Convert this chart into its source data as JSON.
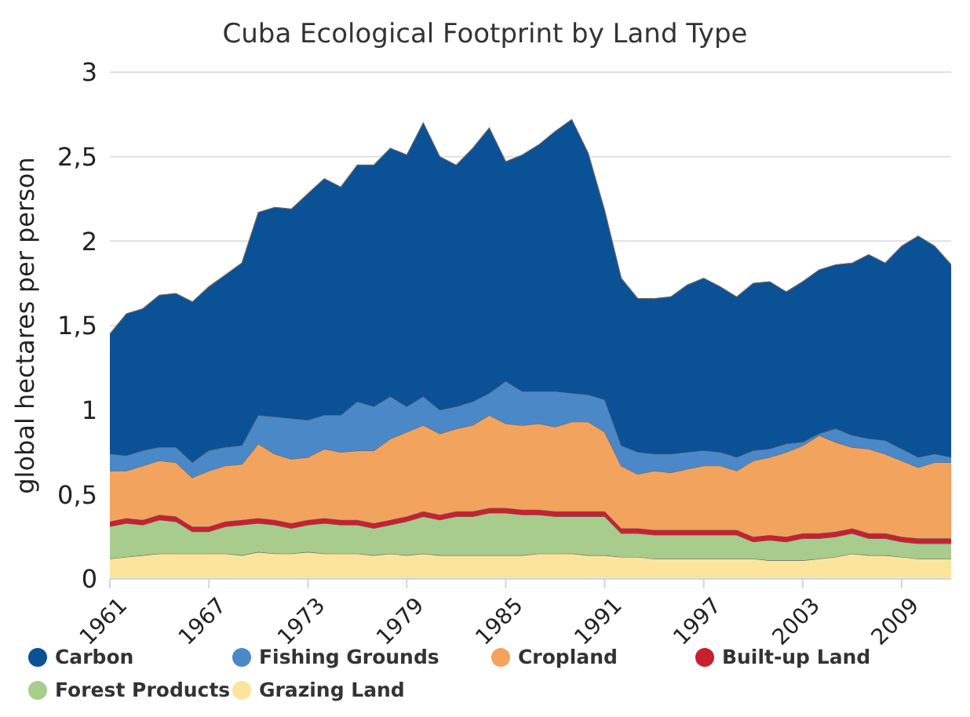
{
  "chart_data": {
    "type": "area",
    "stacked": true,
    "title": "Cuba Ecological Footprint by Land Type",
    "ylabel": "global hectares per person",
    "x": [
      1961,
      1962,
      1963,
      1964,
      1965,
      1966,
      1967,
      1968,
      1969,
      1970,
      1971,
      1972,
      1973,
      1974,
      1975,
      1976,
      1977,
      1978,
      1979,
      1980,
      1981,
      1982,
      1983,
      1984,
      1985,
      1986,
      1987,
      1988,
      1989,
      1990,
      1991,
      1992,
      1993,
      1994,
      1995,
      1996,
      1997,
      1998,
      1999,
      2000,
      2001,
      2002,
      2003,
      2004,
      2005,
      2006,
      2007,
      2008,
      2009,
      2010,
      2011,
      2012
    ],
    "xlim": [
      1961,
      2012
    ],
    "xticks": [
      1961,
      1967,
      1973,
      1979,
      1985,
      1991,
      1997,
      2003,
      2009
    ],
    "ylim": [
      0,
      3
    ],
    "yticks": [
      0,
      {
        "value": 0.5,
        "label": "0,5"
      },
      1,
      {
        "value": 1.5,
        "label": "1,5"
      },
      2,
      {
        "value": 2.5,
        "label": "2,5"
      },
      3
    ],
    "grid": "y",
    "legend": "bottom",
    "series": [
      {
        "name": "Grazing Land",
        "color": "#fde49c",
        "values": [
          0.12,
          0.13,
          0.14,
          0.15,
          0.15,
          0.15,
          0.15,
          0.15,
          0.14,
          0.16,
          0.15,
          0.15,
          0.16,
          0.15,
          0.15,
          0.15,
          0.14,
          0.15,
          0.14,
          0.15,
          0.14,
          0.14,
          0.14,
          0.14,
          0.14,
          0.14,
          0.15,
          0.15,
          0.15,
          0.14,
          0.14,
          0.13,
          0.13,
          0.12,
          0.12,
          0.12,
          0.12,
          0.12,
          0.12,
          0.12,
          0.11,
          0.11,
          0.11,
          0.12,
          0.13,
          0.15,
          0.14,
          0.14,
          0.13,
          0.12,
          0.12,
          0.12
        ]
      },
      {
        "name": "Forest Products",
        "color": "#a8cc8c",
        "values": [
          0.19,
          0.2,
          0.18,
          0.2,
          0.19,
          0.13,
          0.13,
          0.16,
          0.18,
          0.17,
          0.17,
          0.15,
          0.16,
          0.18,
          0.17,
          0.17,
          0.16,
          0.17,
          0.2,
          0.22,
          0.21,
          0.23,
          0.23,
          0.25,
          0.25,
          0.24,
          0.23,
          0.22,
          0.22,
          0.23,
          0.23,
          0.14,
          0.14,
          0.14,
          0.14,
          0.14,
          0.14,
          0.14,
          0.14,
          0.1,
          0.12,
          0.11,
          0.13,
          0.12,
          0.12,
          0.12,
          0.1,
          0.1,
          0.09,
          0.09,
          0.09,
          0.09
        ]
      },
      {
        "name": "Built-up Land",
        "color": "#c8202f",
        "values": [
          0.03,
          0.03,
          0.03,
          0.03,
          0.03,
          0.03,
          0.03,
          0.03,
          0.03,
          0.03,
          0.03,
          0.03,
          0.03,
          0.03,
          0.03,
          0.03,
          0.03,
          0.03,
          0.03,
          0.03,
          0.03,
          0.03,
          0.03,
          0.03,
          0.03,
          0.03,
          0.03,
          0.03,
          0.03,
          0.03,
          0.03,
          0.03,
          0.03,
          0.03,
          0.03,
          0.03,
          0.03,
          0.03,
          0.03,
          0.03,
          0.03,
          0.03,
          0.03,
          0.03,
          0.03,
          0.03,
          0.03,
          0.03,
          0.03,
          0.03,
          0.03,
          0.03
        ]
      },
      {
        "name": "Cropland",
        "color": "#f2a35e",
        "values": [
          0.3,
          0.28,
          0.32,
          0.32,
          0.32,
          0.29,
          0.33,
          0.33,
          0.33,
          0.44,
          0.39,
          0.38,
          0.37,
          0.41,
          0.4,
          0.41,
          0.43,
          0.48,
          0.5,
          0.51,
          0.48,
          0.49,
          0.51,
          0.55,
          0.5,
          0.5,
          0.51,
          0.5,
          0.53,
          0.53,
          0.47,
          0.37,
          0.32,
          0.35,
          0.34,
          0.36,
          0.38,
          0.38,
          0.35,
          0.45,
          0.46,
          0.5,
          0.52,
          0.58,
          0.53,
          0.48,
          0.5,
          0.47,
          0.45,
          0.42,
          0.45,
          0.45
        ]
      },
      {
        "name": "Fishing Grounds",
        "color": "#4b88c7",
        "values": [
          0.1,
          0.09,
          0.09,
          0.08,
          0.09,
          0.09,
          0.12,
          0.11,
          0.11,
          0.17,
          0.22,
          0.24,
          0.22,
          0.2,
          0.22,
          0.29,
          0.26,
          0.25,
          0.15,
          0.17,
          0.14,
          0.13,
          0.14,
          0.13,
          0.25,
          0.2,
          0.19,
          0.21,
          0.17,
          0.16,
          0.19,
          0.12,
          0.13,
          0.1,
          0.11,
          0.1,
          0.09,
          0.08,
          0.08,
          0.06,
          0.05,
          0.05,
          0.02,
          0.01,
          0.08,
          0.07,
          0.06,
          0.08,
          0.07,
          0.06,
          0.05,
          0.03
        ]
      },
      {
        "name": "Carbon",
        "color": "#0a5196",
        "values": [
          0.71,
          0.84,
          0.84,
          0.9,
          0.91,
          0.95,
          0.97,
          1.02,
          1.08,
          1.2,
          1.24,
          1.24,
          1.34,
          1.4,
          1.35,
          1.4,
          1.43,
          1.47,
          1.49,
          1.62,
          1.5,
          1.43,
          1.5,
          1.57,
          1.3,
          1.4,
          1.46,
          1.54,
          1.62,
          1.43,
          1.12,
          0.99,
          0.91,
          0.92,
          0.93,
          0.99,
          1.02,
          0.98,
          0.95,
          0.99,
          0.99,
          0.9,
          0.95,
          0.97,
          0.97,
          1.02,
          1.09,
          1.05,
          1.2,
          1.31,
          1.23,
          1.14
        ]
      }
    ]
  }
}
